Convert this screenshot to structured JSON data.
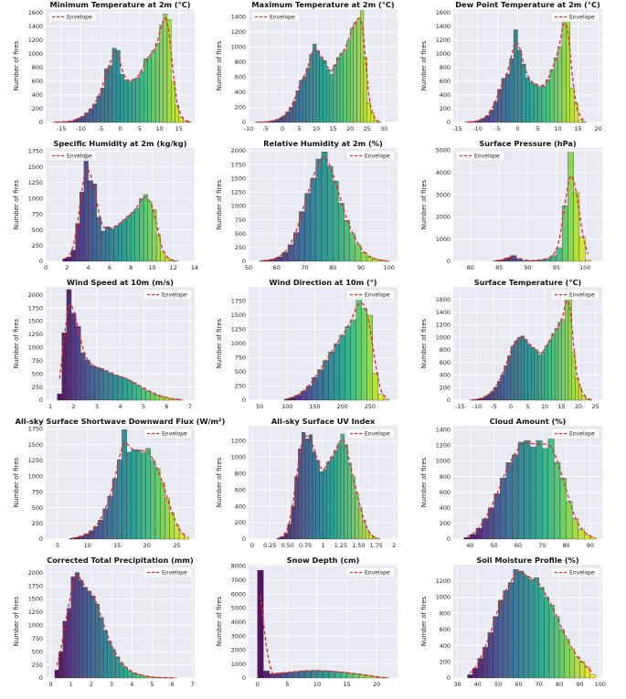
{
  "figure": {
    "ylabel": "Number of fires",
    "legend_label": "Envelope",
    "envelope_color": "#e8262b",
    "plot_bg": "#eaeaf2",
    "colormap": "viridis"
  },
  "chart_data": [
    {
      "type": "bar",
      "title": "Minimum Temperature at 2m (°C)",
      "xlim": [
        -19,
        19
      ],
      "ylim": [
        0,
        1650
      ],
      "xticks": [
        -15,
        -10,
        -5,
        0,
        5,
        10,
        15
      ],
      "yticks": [
        0,
        200,
        400,
        600,
        800,
        1000,
        1200,
        1400,
        1600
      ],
      "bins": [
        -17,
        -16,
        -15,
        -14,
        -13,
        -12,
        -11,
        -10,
        -9,
        -8,
        -7,
        -6,
        -5,
        -4,
        -3,
        -2,
        -1,
        0,
        1,
        2,
        3,
        4,
        5,
        6,
        7,
        8,
        9,
        10,
        11,
        12,
        13,
        14,
        15,
        16,
        17
      ],
      "values": [
        5,
        5,
        10,
        12,
        20,
        40,
        60,
        90,
        140,
        200,
        270,
        380,
        500,
        780,
        830,
        1080,
        1050,
        700,
        620,
        600,
        630,
        650,
        740,
        930,
        950,
        1040,
        1150,
        1420,
        1580,
        1500,
        600,
        250,
        80,
        25,
        10
      ],
      "legend": "Envelope"
    },
    {
      "type": "bar",
      "title": "Maximum Temperature at 2m (°C)",
      "xlim": [
        -10,
        34
      ],
      "ylim": [
        0,
        1500
      ],
      "xticks": [
        -10,
        -5,
        0,
        5,
        10,
        15,
        20,
        25,
        30
      ],
      "yticks": [
        0,
        200,
        400,
        600,
        800,
        1000,
        1200,
        1400
      ],
      "bins": [
        -8,
        -7,
        -6,
        -5,
        -4,
        -3,
        -2,
        -1,
        0,
        1,
        2,
        3,
        4,
        5,
        6,
        7,
        8,
        9,
        10,
        11,
        12,
        13,
        14,
        15,
        16,
        17,
        18,
        19,
        20,
        21,
        22,
        23,
        24,
        25,
        26,
        27,
        28
      ],
      "values": [
        5,
        5,
        5,
        10,
        15,
        25,
        40,
        60,
        90,
        140,
        200,
        280,
        420,
        560,
        600,
        720,
        900,
        1040,
        950,
        860,
        820,
        700,
        640,
        760,
        860,
        920,
        960,
        1080,
        1250,
        1320,
        1360,
        1480,
        860,
        260,
        130,
        30,
        10
      ],
      "legend": "Envelope"
    },
    {
      "type": "bar",
      "title": "Dew Point Temperature at 2m (°C)",
      "xlim": [
        -16,
        21
      ],
      "ylim": [
        0,
        1650
      ],
      "xticks": [
        -15,
        -10,
        -5,
        0,
        5,
        10,
        15,
        20
      ],
      "yticks": [
        0,
        200,
        400,
        600,
        800,
        1000,
        1200,
        1400,
        1600
      ],
      "bins": [
        -13,
        -12,
        -11,
        -10,
        -9,
        -8,
        -7,
        -6,
        -5,
        -4,
        -3,
        -2,
        -1,
        0,
        1,
        2,
        3,
        4,
        5,
        6,
        7,
        8,
        9,
        10,
        11,
        12,
        13,
        14,
        15,
        16
      ],
      "values": [
        5,
        10,
        15,
        30,
        60,
        100,
        180,
        300,
        480,
        640,
        700,
        930,
        1350,
        1050,
        850,
        650,
        580,
        560,
        520,
        530,
        620,
        760,
        940,
        1100,
        1540,
        1580,
        500,
        280,
        40,
        10
      ],
      "legend": "Envelope"
    },
    {
      "type": "bar",
      "title": "Specific Humidity at 2m (kg/kg)",
      "xlim": [
        0,
        14
      ],
      "ylim": [
        0,
        1800
      ],
      "xticks": [
        0,
        2,
        4,
        6,
        8,
        10,
        12,
        14
      ],
      "yticks": [
        0,
        250,
        500,
        750,
        1000,
        1250,
        1500,
        1750
      ],
      "bins": [
        1.6,
        2.0,
        2.4,
        2.8,
        3.2,
        3.6,
        4.0,
        4.4,
        4.8,
        5.2,
        5.6,
        6.0,
        6.4,
        6.8,
        7.2,
        7.6,
        8.0,
        8.4,
        8.8,
        9.2,
        9.6,
        10.0,
        10.4,
        10.8,
        11.2,
        11.6,
        12.0
      ],
      "values": [
        40,
        70,
        180,
        600,
        1100,
        1720,
        1280,
        1230,
        700,
        480,
        550,
        520,
        560,
        600,
        660,
        720,
        780,
        840,
        1000,
        1060,
        950,
        820,
        420,
        150,
        60,
        20,
        10
      ],
      "legend": "Envelope"
    },
    {
      "type": "bar",
      "title": "Relative Humidity at 2m (%)",
      "xlim": [
        50,
        103
      ],
      "ylim": [
        0,
        2050
      ],
      "xticks": [
        50,
        60,
        70,
        80,
        90,
        100
      ],
      "yticks": [
        0,
        250,
        500,
        750,
        1000,
        1250,
        1500,
        1750,
        2000
      ],
      "bins": [
        54,
        56,
        58,
        60,
        62,
        64,
        66,
        68,
        70,
        72,
        74,
        76,
        78,
        80,
        82,
        84,
        86,
        88,
        90,
        92,
        94,
        96,
        98
      ],
      "values": [
        10,
        20,
        40,
        80,
        160,
        300,
        520,
        900,
        1230,
        1500,
        1850,
        1980,
        1720,
        1450,
        1050,
        740,
        500,
        300,
        160,
        80,
        40,
        20,
        10
      ],
      "legend": "Envelope"
    },
    {
      "type": "bar",
      "title": "Surface Pressure (hPa)",
      "xlim": [
        77,
        103
      ],
      "ylim": [
        0,
        5100
      ],
      "xticks": [
        80,
        85,
        90,
        95,
        100
      ],
      "yticks": [
        0,
        1000,
        2000,
        3000,
        4000,
        5000
      ],
      "bins": [
        84,
        85,
        86,
        87,
        88,
        89,
        90,
        91,
        92,
        93,
        94,
        95,
        96,
        97,
        98,
        99,
        100
      ],
      "values": [
        20,
        60,
        150,
        260,
        120,
        40,
        30,
        40,
        70,
        120,
        260,
        600,
        2500,
        4900,
        3100,
        1100,
        60
      ],
      "legend": "Envelope"
    },
    {
      "type": "bar",
      "title": "Wind Speed at 10m (m/s)",
      "xlim": [
        0.8,
        7.2
      ],
      "ylim": [
        0,
        2150
      ],
      "xticks": [
        1,
        2,
        3,
        4,
        5,
        6,
        7
      ],
      "yticks": [
        0,
        250,
        500,
        750,
        1000,
        1250,
        1500,
        1750,
        2000
      ],
      "bins": [
        1.3,
        1.5,
        1.7,
        1.9,
        2.1,
        2.3,
        2.5,
        2.7,
        2.9,
        3.1,
        3.3,
        3.5,
        3.7,
        3.9,
        4.1,
        4.3,
        4.5,
        4.7,
        4.9,
        5.1,
        5.3,
        5.5,
        5.7,
        5.9,
        6.1,
        6.3,
        6.5
      ],
      "values": [
        120,
        1280,
        2100,
        1650,
        1400,
        900,
        760,
        660,
        620,
        600,
        560,
        520,
        480,
        450,
        420,
        380,
        330,
        280,
        230,
        180,
        140,
        100,
        70,
        50,
        30,
        20,
        10
      ],
      "legend": "Envelope"
    },
    {
      "type": "bar",
      "title": "Wind Direction at 10m (°)",
      "xlim": [
        30,
        300
      ],
      "ylim": [
        0,
        2000
      ],
      "xticks": [
        50,
        100,
        150,
        200,
        250
      ],
      "yticks": [
        0,
        250,
        500,
        750,
        1000,
        1250,
        1500,
        1750
      ],
      "bins": [
        95,
        105,
        115,
        125,
        135,
        145,
        155,
        165,
        175,
        185,
        195,
        205,
        215,
        225,
        235,
        245,
        255,
        265,
        275
      ],
      "values": [
        20,
        50,
        90,
        160,
        250,
        400,
        540,
        700,
        850,
        1000,
        1150,
        1300,
        1420,
        1880,
        1620,
        1500,
        480,
        100,
        20
      ],
      "legend": "Envelope"
    },
    {
      "type": "bar",
      "title": "Surface Temperature (°C)",
      "xlim": [
        -17,
        27
      ],
      "ylim": [
        0,
        1800
      ],
      "xticks": [
        -15,
        -10,
        -5,
        0,
        5,
        10,
        15,
        20,
        25
      ],
      "yticks": [
        0,
        200,
        400,
        600,
        800,
        1000,
        1200,
        1400,
        1600
      ],
      "bins": [
        -12,
        -11,
        -10,
        -9,
        -8,
        -7,
        -6,
        -5,
        -4,
        -3,
        -2,
        -1,
        0,
        1,
        2,
        3,
        4,
        5,
        6,
        7,
        8,
        9,
        10,
        11,
        12,
        13,
        14,
        15,
        16,
        17,
        18,
        19,
        20,
        21,
        22,
        23
      ],
      "values": [
        5,
        10,
        20,
        35,
        60,
        90,
        140,
        210,
        300,
        400,
        550,
        700,
        860,
        940,
        1000,
        1020,
        960,
        880,
        840,
        800,
        720,
        760,
        860,
        940,
        1060,
        1140,
        1240,
        1280,
        1700,
        1660,
        760,
        360,
        200,
        80,
        20,
        10
      ],
      "legend": "Envelope"
    },
    {
      "type": "bar",
      "title": "All-sky Surface Shortwave Downward Flux (W/m²)",
      "xlim": [
        3,
        28
      ],
      "ylim": [
        0,
        1800
      ],
      "xticks": [
        5,
        10,
        15,
        20,
        25
      ],
      "yticks": [
        0,
        250,
        500,
        750,
        1000,
        1250,
        1500,
        1750
      ],
      "bins": [
        7,
        7.8,
        8.6,
        9.4,
        10.2,
        11,
        11.8,
        12.6,
        13.4,
        14.2,
        15,
        15.8,
        16.6,
        17.4,
        18.2,
        19,
        19.8,
        20.6,
        21.4,
        22.2,
        23,
        23.8,
        24.6,
        25.4,
        26.2
      ],
      "values": [
        10,
        25,
        50,
        80,
        130,
        200,
        300,
        480,
        680,
        960,
        1260,
        1740,
        1380,
        1420,
        1420,
        1370,
        1440,
        1250,
        1120,
        900,
        650,
        420,
        220,
        90,
        30
      ],
      "legend": "Envelope"
    },
    {
      "type": "bar",
      "title": "All-sky Surface UV Index",
      "xlim": [
        -0.05,
        2.05
      ],
      "ylim": [
        0,
        1380
      ],
      "xticks": [
        0.0,
        0.25,
        0.5,
        0.75,
        1.0,
        1.25,
        1.5,
        1.75,
        2.0
      ],
      "yticks": [
        0,
        200,
        400,
        600,
        800,
        1000,
        1200
      ],
      "bins": [
        0.35,
        0.4,
        0.45,
        0.5,
        0.55,
        0.6,
        0.65,
        0.7,
        0.75,
        0.8,
        0.85,
        0.9,
        0.95,
        1.0,
        1.05,
        1.1,
        1.15,
        1.2,
        1.25,
        1.3,
        1.35,
        1.4,
        1.45,
        1.5,
        1.55,
        1.6,
        1.65,
        1.7,
        1.75
      ],
      "values": [
        10,
        30,
        70,
        180,
        400,
        760,
        1100,
        1300,
        1220,
        1270,
        1060,
        960,
        820,
        850,
        940,
        1000,
        1080,
        1160,
        1280,
        1150,
        920,
        760,
        560,
        390,
        230,
        110,
        50,
        20,
        10
      ],
      "legend": "Envelope"
    },
    {
      "type": "bar",
      "title": "Cloud Amount (%)",
      "xlim": [
        33,
        95
      ],
      "ylim": [
        0,
        1450
      ],
      "xticks": [
        40,
        50,
        60,
        70,
        80,
        90
      ],
      "yticks": [
        0,
        200,
        400,
        600,
        800,
        1000,
        1200,
        1400
      ],
      "bins": [
        37.5,
        40,
        42.5,
        45,
        47.5,
        50,
        52.5,
        55,
        57.5,
        60,
        62.5,
        65,
        67.5,
        70,
        72.5,
        75,
        77.5,
        80,
        82.5,
        85,
        87.5,
        90
      ],
      "values": [
        20,
        60,
        140,
        260,
        400,
        580,
        780,
        980,
        1080,
        1240,
        1260,
        1180,
        1260,
        1160,
        1280,
        980,
        780,
        480,
        260,
        120,
        50,
        20
      ],
      "legend": "Envelope"
    },
    {
      "type": "bar",
      "title": "Corrected Total Precipitation (mm)",
      "xlim": [
        -0.25,
        7.1
      ],
      "ylim": [
        0,
        2150
      ],
      "xticks": [
        0,
        1,
        2,
        3,
        4,
        5,
        6,
        7
      ],
      "yticks": [
        0,
        250,
        500,
        750,
        1000,
        1250,
        1500,
        1750,
        2000
      ],
      "bins": [
        0.2,
        0.4,
        0.6,
        0.8,
        1.0,
        1.2,
        1.4,
        1.6,
        1.8,
        2.0,
        2.2,
        2.4,
        2.6,
        2.8,
        3.0,
        3.2,
        3.4,
        3.6,
        3.8,
        4.0,
        4.2,
        4.4,
        4.6,
        4.8,
        5.0,
        5.2,
        5.4,
        5.6,
        5.8,
        6.0
      ],
      "values": [
        150,
        500,
        1080,
        1320,
        1920,
        2000,
        1850,
        1720,
        1650,
        1560,
        1400,
        1150,
        900,
        700,
        540,
        400,
        280,
        200,
        140,
        100,
        70,
        50,
        35,
        25,
        15,
        10,
        8,
        5,
        3,
        2
      ],
      "legend": "Envelope"
    },
    {
      "type": "bar",
      "title": "Snow Depth (cm)",
      "xlim": [
        -1.5,
        23.5
      ],
      "ylim": [
        0,
        8100
      ],
      "xticks": [
        0,
        5,
        10,
        15,
        20
      ],
      "yticks": [
        0,
        1000,
        2000,
        3000,
        4000,
        5000,
        6000,
        7000,
        8000
      ],
      "bins": [
        0,
        1,
        2,
        3,
        4,
        5,
        6,
        7,
        8,
        9,
        10,
        11,
        12,
        13,
        14,
        15,
        16,
        17,
        18,
        19,
        20,
        21
      ],
      "values": [
        7700,
        500,
        300,
        350,
        380,
        420,
        460,
        500,
        520,
        540,
        520,
        500,
        480,
        440,
        400,
        350,
        300,
        250,
        180,
        120,
        60,
        20
      ],
      "legend": "Envelope"
    },
    {
      "type": "bar",
      "title": "Soil Moisture Profile (%)",
      "xlim": [
        28,
        101
      ],
      "ylim": [
        0,
        1400
      ],
      "xticks": [
        30,
        40,
        50,
        60,
        70,
        80,
        90,
        100
      ],
      "yticks": [
        0,
        200,
        400,
        600,
        800,
        1000,
        1200
      ],
      "bins": [
        35,
        37.5,
        40,
        42.5,
        45,
        47.5,
        50,
        52.5,
        55,
        57.5,
        60,
        62.5,
        65,
        67.5,
        70,
        72.5,
        75,
        77.5,
        80,
        82.5,
        85,
        87.5,
        90,
        92.5,
        95
      ],
      "values": [
        40,
        120,
        240,
        380,
        560,
        760,
        960,
        1080,
        1180,
        1340,
        1320,
        1260,
        1220,
        1240,
        1120,
        1000,
        900,
        760,
        600,
        480,
        360,
        260,
        200,
        130,
        40
      ],
      "legend": "Envelope"
    }
  ]
}
